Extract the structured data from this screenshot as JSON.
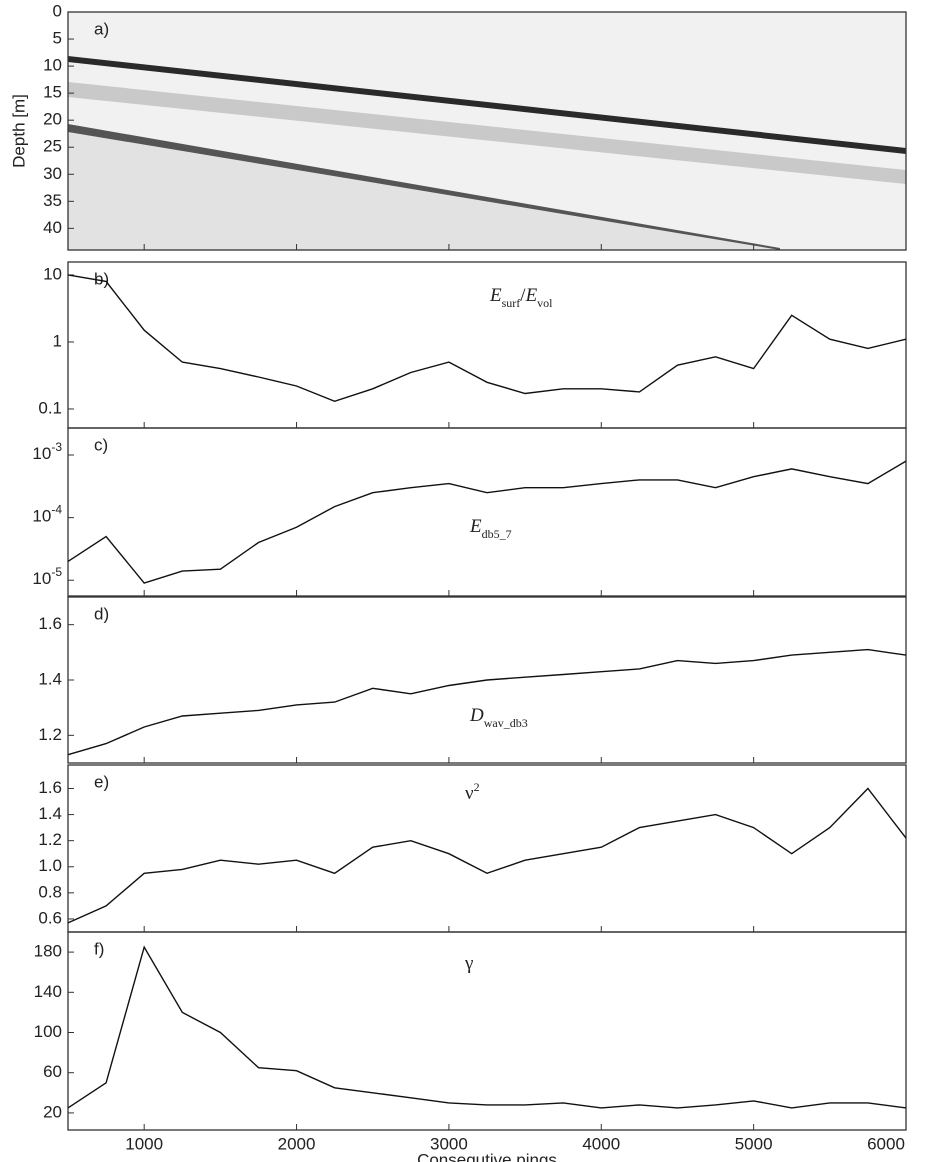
{
  "chart_data": [
    {
      "type": "image",
      "panel_label": "a)",
      "ylabel": "Depth [m]",
      "ylim": [
        44,
        0
      ],
      "yticks": [
        0,
        5,
        10,
        15,
        20,
        25,
        30,
        35,
        40
      ],
      "xlim": [
        500,
        6000
      ],
      "xticks": [
        1000,
        2000,
        3000,
        4000,
        5000,
        6000
      ]
    },
    {
      "type": "line",
      "panel_label": "b)",
      "annotation": [
        {
          "text": "E",
          "style": "italic"
        },
        {
          "text": "surf",
          "style": "sub"
        },
        {
          "text": "/"
        },
        {
          "text": "E",
          "style": "italic"
        },
        {
          "text": "vol",
          "style": "sub"
        }
      ],
      "yscale": "log",
      "ylim": [
        0.052,
        15.6
      ],
      "yticks": [
        0.1,
        1,
        10
      ],
      "xlim": [
        500,
        6000
      ],
      "xticks": [
        1000,
        2000,
        3000,
        4000,
        5000,
        6000
      ],
      "color": "#111111",
      "x": [
        500,
        750,
        1000,
        1250,
        1500,
        1750,
        2000,
        2250,
        2500,
        2750,
        3000,
        3250,
        3500,
        3750,
        4000,
        4250,
        4500,
        4750,
        5000,
        5250,
        5500,
        5750,
        6000
      ],
      "values": [
        10,
        8,
        1.5,
        0.5,
        0.4,
        0.3,
        0.22,
        0.13,
        0.2,
        0.35,
        0.5,
        0.25,
        0.17,
        0.2,
        0.2,
        0.18,
        0.45,
        0.6,
        0.4,
        2.5,
        1.1,
        0.8,
        1.1
      ]
    },
    {
      "type": "line",
      "panel_label": "c)",
      "annotation": [
        {
          "text": "E",
          "style": "italic"
        },
        {
          "text": "db5_7",
          "style": "sub"
        }
      ],
      "yscale": "log",
      "ylim": [
        5.6e-06,
        0.0027
      ],
      "yticks": [
        {
          "value": 1e-05,
          "label": "10",
          "exponent": "-5"
        },
        {
          "value": 0.0001,
          "label": "10",
          "exponent": "-4"
        },
        {
          "value": 0.001,
          "label": "10",
          "exponent": "-3"
        }
      ],
      "xlim": [
        500,
        6000
      ],
      "xticks": [
        1000,
        2000,
        3000,
        4000,
        5000,
        6000
      ],
      "color": "#111111",
      "x": [
        500,
        750,
        1000,
        1250,
        1500,
        1750,
        2000,
        2250,
        2500,
        2750,
        3000,
        3250,
        3500,
        3750,
        4000,
        4250,
        4500,
        4750,
        5000,
        5250,
        5500,
        5750,
        6000
      ],
      "values": [
        2e-05,
        5e-05,
        9e-06,
        1.4e-05,
        1.5e-05,
        4e-05,
        7e-05,
        0.00015,
        0.00025,
        0.0003,
        0.00035,
        0.00025,
        0.0003,
        0.0003,
        0.00035,
        0.0004,
        0.0004,
        0.0003,
        0.00045,
        0.0006,
        0.00045,
        0.00035,
        0.0008
      ]
    },
    {
      "type": "line",
      "panel_label": "d)",
      "annotation": [
        {
          "text": "D",
          "style": "italic"
        },
        {
          "text": "wav_db3",
          "style": "sub"
        }
      ],
      "ylim": [
        1.1,
        1.7
      ],
      "yticks": [
        1.2,
        1.4,
        1.6
      ],
      "xlim": [
        500,
        6000
      ],
      "xticks": [
        1000,
        2000,
        3000,
        4000,
        5000,
        6000
      ],
      "color": "#111111",
      "x": [
        500,
        750,
        1000,
        1250,
        1500,
        1750,
        2000,
        2250,
        2500,
        2750,
        3000,
        3250,
        3500,
        3750,
        4000,
        4250,
        4500,
        4750,
        5000,
        5250,
        5500,
        5750,
        6000
      ],
      "values": [
        1.13,
        1.17,
        1.23,
        1.27,
        1.28,
        1.29,
        1.31,
        1.32,
        1.37,
        1.35,
        1.38,
        1.4,
        1.41,
        1.42,
        1.43,
        1.44,
        1.47,
        1.46,
        1.47,
        1.49,
        1.5,
        1.51,
        1.49
      ]
    },
    {
      "type": "line",
      "panel_label": "e)",
      "annotation": [
        {
          "text": "ν"
        },
        {
          "text": "2",
          "style": "sup"
        }
      ],
      "ylim": [
        0.5,
        1.78
      ],
      "yticks": [
        0.6,
        0.8,
        {
          "value": 1,
          "label": "1.0"
        },
        1.2,
        1.4,
        1.6
      ],
      "xlim": [
        500,
        6000
      ],
      "xticks": [
        1000,
        2000,
        3000,
        4000,
        5000,
        6000
      ],
      "color": "#111111",
      "x": [
        500,
        750,
        1000,
        1250,
        1500,
        1750,
        2000,
        2250,
        2500,
        2750,
        3000,
        3250,
        3500,
        3750,
        4000,
        4250,
        4500,
        4750,
        5000,
        5250,
        5500,
        5750,
        6000
      ],
      "values": [
        0.57,
        0.7,
        0.95,
        0.98,
        1.05,
        1.02,
        1.05,
        0.95,
        1.15,
        1.2,
        1.1,
        0.95,
        1.05,
        1.1,
        1.15,
        1.3,
        1.35,
        1.4,
        1.3,
        1.1,
        1.3,
        1.6,
        1.22
      ]
    },
    {
      "type": "line",
      "panel_label": "f)",
      "annotation": [
        {
          "text": "γ"
        }
      ],
      "xlabel": "Consequtive pings",
      "ylim": [
        3,
        200
      ],
      "yticks": [
        20,
        60,
        100,
        140,
        180
      ],
      "xlim": [
        500,
        6000
      ],
      "xticks": [
        1000,
        2000,
        3000,
        4000,
        5000,
        6000
      ],
      "color": "#111111",
      "x": [
        500,
        750,
        1000,
        1250,
        1500,
        1750,
        2000,
        2250,
        2500,
        2750,
        3000,
        3250,
        3500,
        3750,
        4000,
        4250,
        4500,
        4750,
        5000,
        5250,
        5500,
        5750,
        6000
      ],
      "values": [
        25,
        50,
        185,
        120,
        100,
        65,
        62,
        45,
        40,
        35,
        30,
        28,
        28,
        30,
        25,
        28,
        25,
        28,
        32,
        25,
        30,
        30,
        25
      ]
    }
  ]
}
